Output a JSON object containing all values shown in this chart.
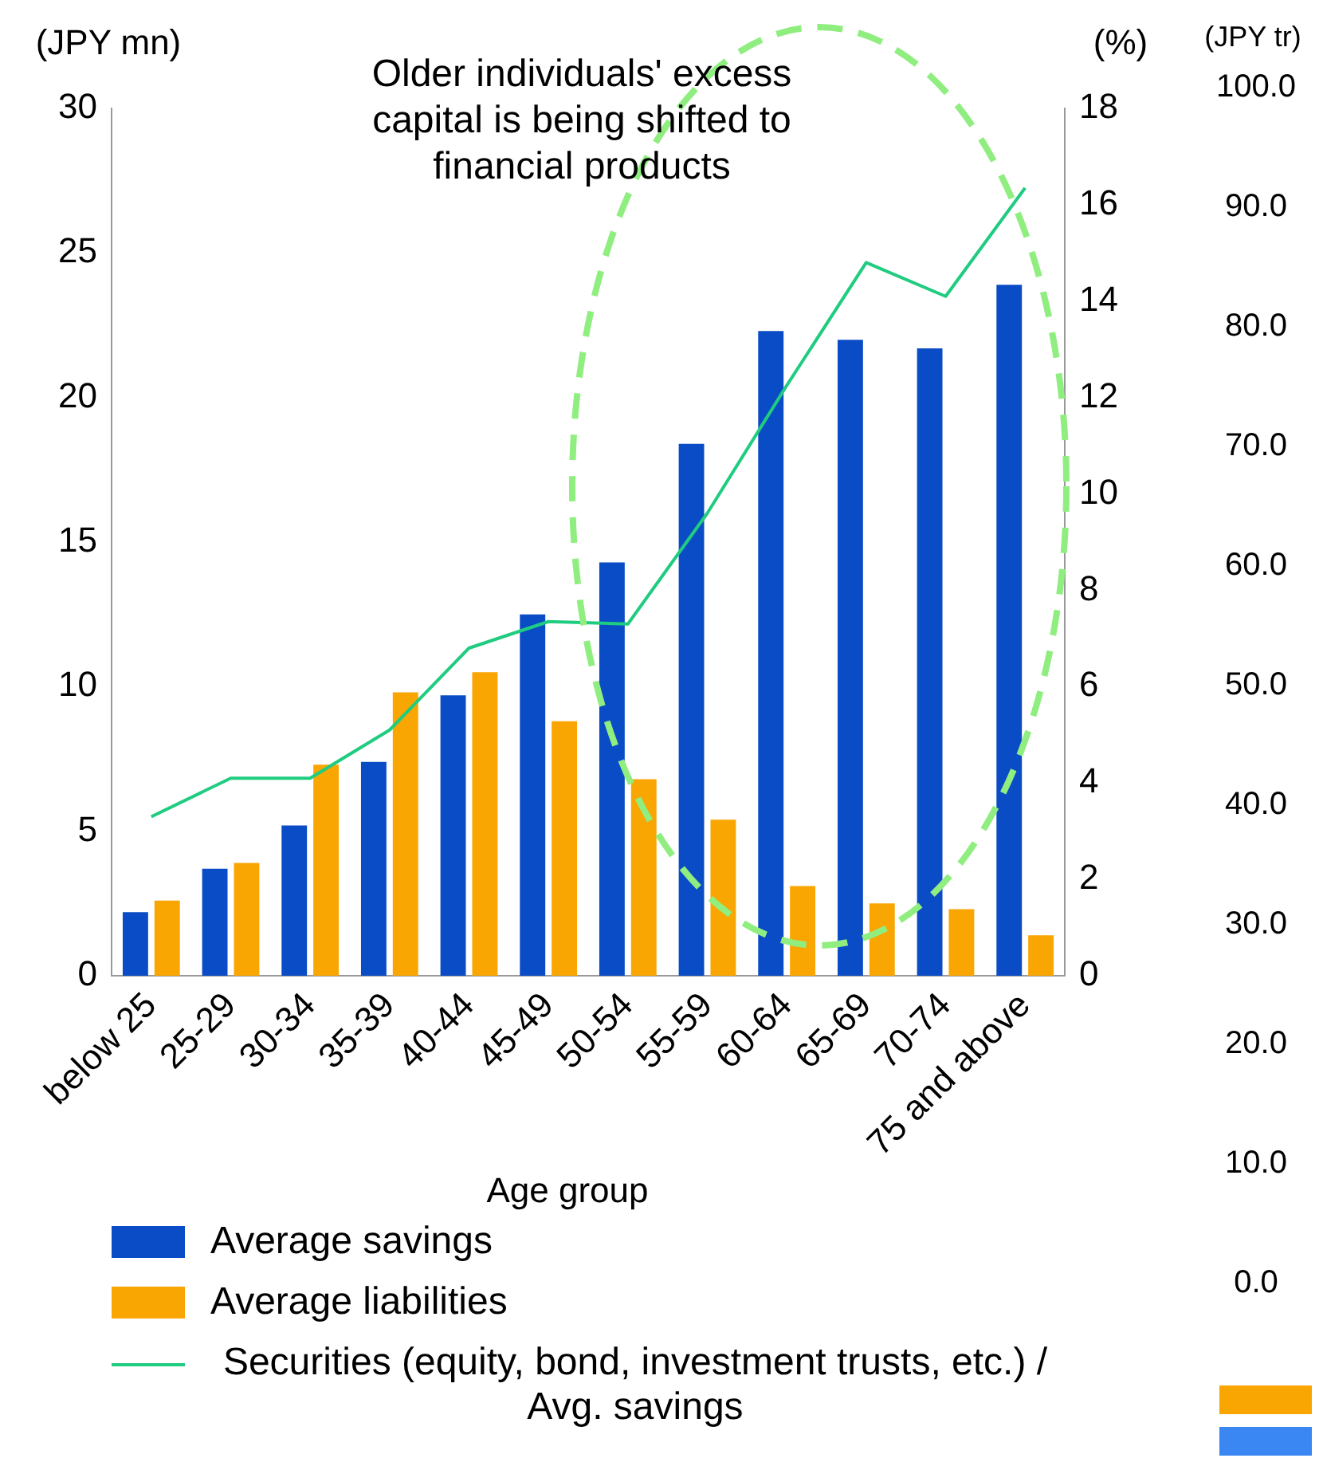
{
  "chart_data": {
    "type": "bar",
    "xlabel": "Age group",
    "ylabel": "(JPY mn)",
    "y2label": "(%)",
    "y3label": "(JPY tr)",
    "categories": [
      "below 25",
      "25-29",
      "30-34",
      "35-39",
      "40-44",
      "45-49",
      "50-54",
      "55-59",
      "60-64",
      "65-69",
      "70-74",
      "75 and above"
    ],
    "series": [
      {
        "name": "Average savings",
        "color": "#0a4bc6",
        "values": [
          2.2,
          3.7,
          5.2,
          7.4,
          9.7,
          12.5,
          14.3,
          18.4,
          22.3,
          22.0,
          21.7,
          23.9
        ]
      },
      {
        "name": "Average liabilities",
        "color": "#f9a602",
        "values": [
          2.6,
          3.9,
          7.3,
          9.8,
          10.5,
          8.8,
          6.8,
          5.4,
          3.1,
          2.5,
          2.3,
          1.4
        ]
      },
      {
        "name": "Securities (equity, bond, investment trusts, etc.) / Avg. savings",
        "type": "line",
        "axis": "y2",
        "color": "#1fcc80",
        "values": [
          3.3,
          4.1,
          4.1,
          5.1,
          6.8,
          7.35,
          7.3,
          9.6,
          12.25,
          14.8,
          14.1,
          16.35
        ]
      }
    ],
    "ylim": [
      0,
      30
    ],
    "yticks": [
      0,
      5,
      10,
      15,
      20,
      25,
      30
    ],
    "y2lim": [
      0,
      18
    ],
    "y2ticks": [
      0,
      2,
      4,
      6,
      8,
      10,
      12,
      14,
      16,
      18
    ],
    "y3lim": [
      0,
      100
    ],
    "y3ticks": [
      {
        "value": 0,
        "label": "0.0"
      },
      {
        "value": 10,
        "label": "10.0"
      },
      {
        "value": 20,
        "label": "20.0"
      },
      {
        "value": 30,
        "label": "30.0"
      },
      {
        "value": 40,
        "label": "40.0"
      },
      {
        "value": 50,
        "label": "50.0"
      },
      {
        "value": 60,
        "label": "60.0"
      },
      {
        "value": 70,
        "label": "70.0"
      },
      {
        "value": 80,
        "label": "80.0"
      },
      {
        "value": 90,
        "label": "90.0"
      },
      {
        "value": 100,
        "label": "100.0"
      }
    ],
    "annotations": [
      "Older individuals' excess capital is being shifted to financial products"
    ],
    "grid": false,
    "legend": "bottom left",
    "marker": "none",
    "line_style": "solid"
  }
}
